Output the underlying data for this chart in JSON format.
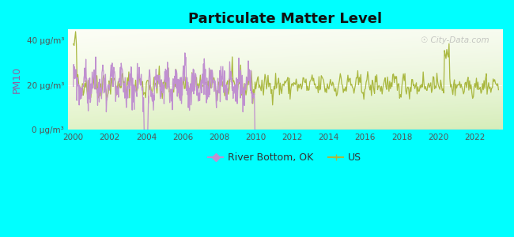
{
  "title": "Particulate Matter Level",
  "ylabel": "PM10",
  "background_outer": "#00FFFF",
  "plot_area_color_bottom": "#c8e890",
  "plot_area_color_top": "#e8f5e0",
  "grid_color": "#ffffff",
  "line_color_ok": "#c090d0",
  "line_color_us": "#aab840",
  "legend_ok": "River Bottom, OK",
  "legend_us": "US",
  "yticks": [
    0,
    20,
    40
  ],
  "ytick_labels": [
    "0 μg/m³",
    "20 μg/m³",
    "40 μg/m³"
  ],
  "ylim": [
    0,
    45
  ],
  "xlim": [
    1999.7,
    2023.5
  ],
  "xticks": [
    2000,
    2002,
    2004,
    2006,
    2008,
    2010,
    2012,
    2014,
    2016,
    2018,
    2020,
    2022
  ],
  "watermark": "City-Data.com",
  "title_fontsize": 13,
  "axis_label_color": "#555555",
  "ylabel_color": "#9060a0"
}
